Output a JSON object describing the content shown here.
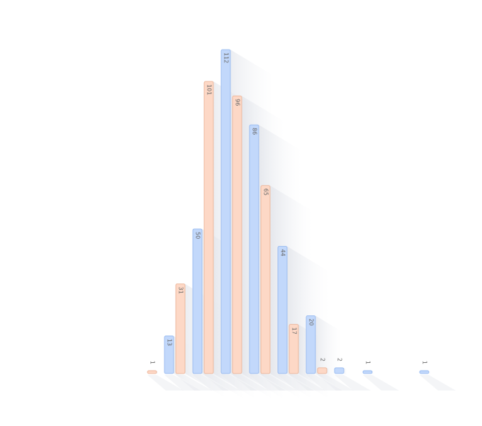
{
  "chart_data": {
    "type": "bar",
    "title": "",
    "xlabel": "",
    "ylabel": "",
    "ylim": [
      0,
      115
    ],
    "grid": false,
    "legend": "none",
    "bars": [
      {
        "series": 1,
        "value": 1,
        "label": "1"
      },
      {
        "series": 0,
        "value": 13,
        "label": "13"
      },
      {
        "series": 1,
        "value": 31,
        "label": "31"
      },
      {
        "series": 0,
        "value": 50,
        "label": "50"
      },
      {
        "series": 1,
        "value": 101,
        "label": "101"
      },
      {
        "series": 0,
        "value": 112,
        "label": "112"
      },
      {
        "series": 1,
        "value": 96,
        "label": "96"
      },
      {
        "series": 0,
        "value": 86,
        "label": "86"
      },
      {
        "series": 1,
        "value": 65,
        "label": "65"
      },
      {
        "series": 0,
        "value": 44,
        "label": "44"
      },
      {
        "series": 1,
        "value": 17,
        "label": "17"
      },
      {
        "series": 0,
        "value": 20,
        "label": "20"
      },
      {
        "series": 1,
        "value": 2,
        "label": "2"
      },
      {
        "series": 0,
        "value": 2,
        "label": "2"
      },
      {
        "series": 0,
        "value": 1,
        "label": "1"
      },
      {
        "series": 0,
        "value": 1,
        "label": "1"
      }
    ],
    "colors": {
      "series0_fill": "#c2d8fb",
      "series0_stroke": "#8fb4ee",
      "series1_fill": "#fdd8c6",
      "series1_stroke": "#e9ae90"
    }
  }
}
